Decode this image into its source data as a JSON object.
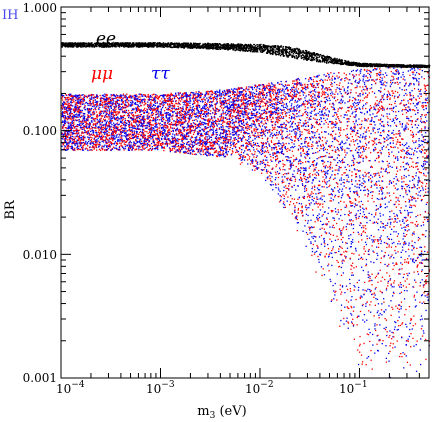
{
  "chart_data": {
    "type": "scatter",
    "panel_label": "IH",
    "xlabel": "m3 (eV)",
    "ylabel": "BR",
    "x_scale": "log",
    "y_scale": "log",
    "xlim": [
      0.0001,
      0.5
    ],
    "ylim": [
      0.001,
      1.0
    ],
    "x_tick_labels": [
      "10-4",
      "10-3",
      "10-2",
      "10-1"
    ],
    "x_ticks": [
      0.0001,
      0.001,
      0.01,
      0.1
    ],
    "y_tick_labels": [
      "0.001",
      "0.010",
      "0.100",
      "1.000"
    ],
    "y_ticks": [
      0.001,
      0.01,
      0.1,
      1.0
    ],
    "grid": false,
    "series": [
      {
        "name": "ee",
        "color": "#000000",
        "band_x": [
          0.0001,
          0.001,
          0.003,
          0.01,
          0.02,
          0.04,
          0.07,
          0.1,
          0.2,
          0.5
        ],
        "band_y_center": [
          0.5,
          0.5,
          0.49,
          0.47,
          0.44,
          0.39,
          0.36,
          0.345,
          0.34,
          0.335
        ],
        "band_y_spread": [
          0.04,
          0.04,
          0.05,
          0.07,
          0.09,
          0.06,
          0.03,
          0.02,
          0.015,
          0.015
        ]
      },
      {
        "name": "μμ",
        "color": "#ff0000",
        "band_x": [
          0.0001,
          0.001,
          0.005,
          0.01,
          0.02,
          0.05,
          0.1,
          0.2,
          0.5
        ],
        "band_y_min": [
          0.07,
          0.07,
          0.06,
          0.04,
          0.02,
          0.004,
          0.001,
          0.001,
          0.001
        ],
        "band_y_max": [
          0.2,
          0.2,
          0.22,
          0.24,
          0.26,
          0.3,
          0.32,
          0.33,
          0.34
        ]
      },
      {
        "name": "ττ",
        "color": "#0000ee",
        "band_x": [
          0.0001,
          0.001,
          0.005,
          0.01,
          0.02,
          0.05,
          0.1,
          0.2,
          0.5
        ],
        "band_y_min": [
          0.07,
          0.07,
          0.06,
          0.04,
          0.02,
          0.004,
          0.001,
          0.001,
          0.001
        ],
        "band_y_max": [
          0.2,
          0.2,
          0.22,
          0.24,
          0.26,
          0.3,
          0.32,
          0.33,
          0.34
        ]
      }
    ]
  }
}
